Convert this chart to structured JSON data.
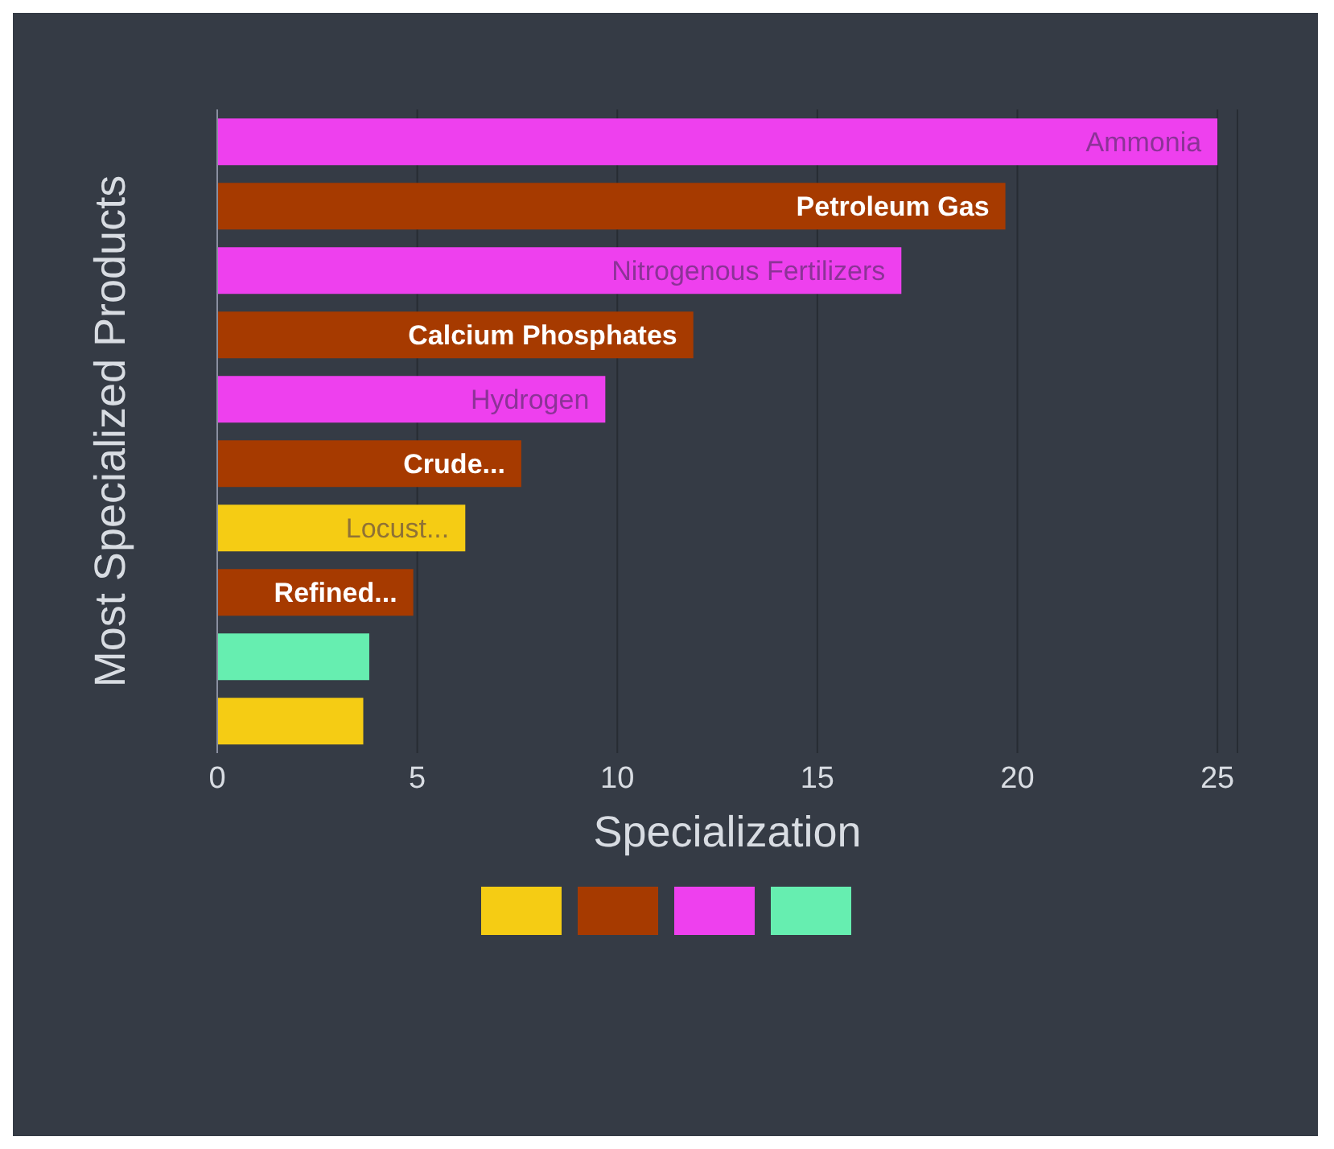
{
  "chart_data": {
    "type": "bar",
    "orientation": "horizontal",
    "stacked": true,
    "xlabel": "Specialization",
    "ylabel": "Most Specialized Products",
    "categories": [
      "Ammonia",
      "Petroleum Gas",
      "Nitrogenous Fertilizers",
      "Calcium Phosphates",
      "Hydrogen",
      "Crude...",
      "Locust...",
      "Refined...",
      null,
      null
    ],
    "series": [
      {
        "color": "#f5cc14",
        "values": [
          null,
          null,
          null,
          null,
          null,
          null,
          6.2,
          null,
          null,
          3.65
        ]
      },
      {
        "color": "#a63a00",
        "values": [
          null,
          19.7,
          null,
          11.9,
          null,
          7.6,
          null,
          4.9,
          null,
          null
        ]
      },
      {
        "color": "#ee40ee",
        "values": [
          25.0,
          null,
          17.1,
          null,
          9.7,
          null,
          null,
          null,
          null,
          null
        ]
      },
      {
        "color": "#66eeb0",
        "values": [
          null,
          null,
          null,
          null,
          null,
          null,
          null,
          null,
          3.8,
          null
        ]
      }
    ],
    "xlim": [
      0,
      25.5
    ],
    "xticks": [
      0,
      5,
      10,
      15,
      20,
      25
    ],
    "grid": "x",
    "tick_labels": "x"
  }
}
